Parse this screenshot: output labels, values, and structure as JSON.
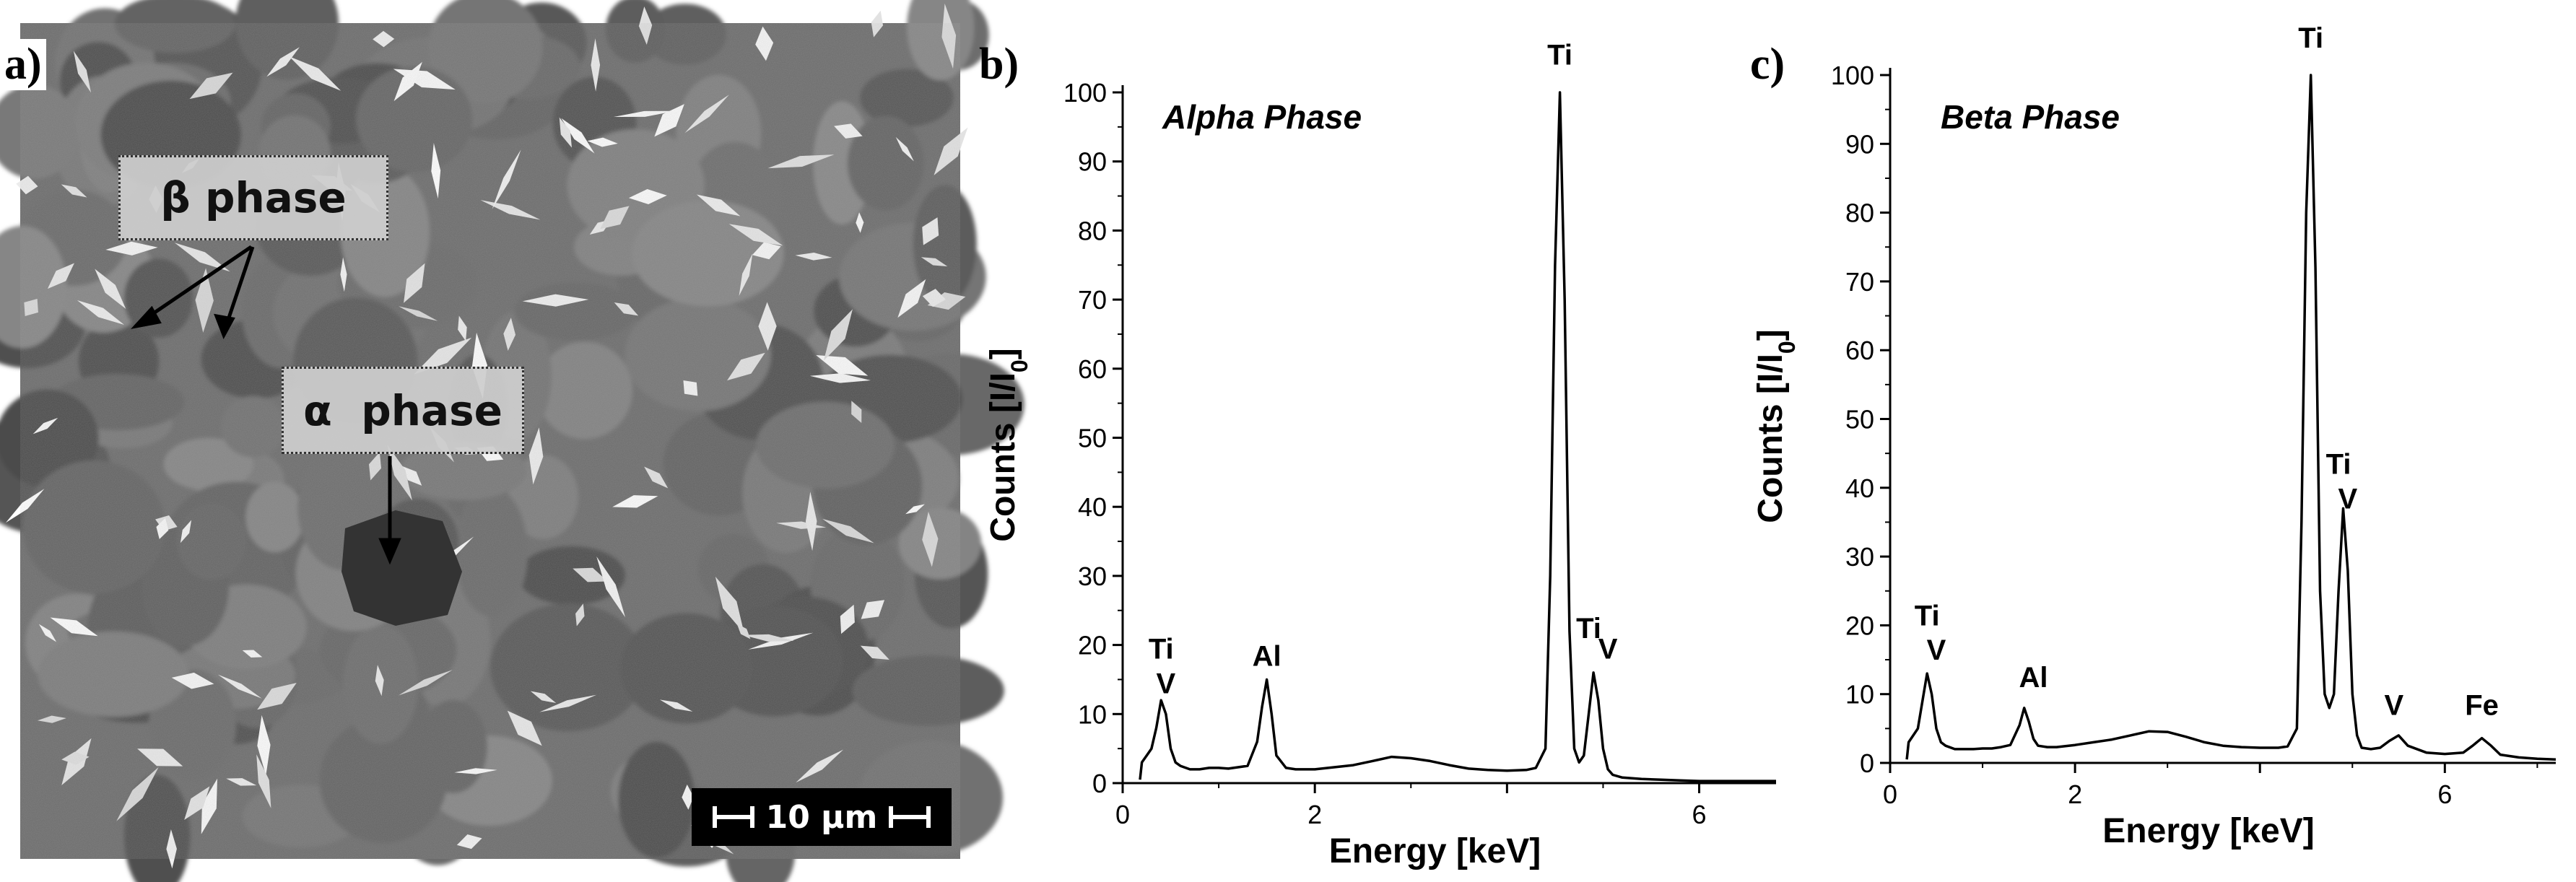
{
  "micrograph": {
    "panel_label": "a)",
    "beta_label": "β phase",
    "alpha_label": "α  phase",
    "scale_bar_text": "10 μm"
  },
  "chart_data": [
    {
      "panel_label": "b)",
      "type": "line",
      "title": "Alpha Phase",
      "xlabel": "Energy [keV]",
      "ylabel": "Counts [I/I",
      "ylabel_subscript": "0",
      "ylabel_suffix": "]",
      "xlim": [
        0,
        6.8
      ],
      "ylim": [
        0,
        100
      ],
      "xticks": [
        0,
        2,
        4,
        6
      ],
      "xtick_labels": [
        "0",
        "2",
        "",
        "6"
      ],
      "yticks": [
        0,
        10,
        20,
        30,
        40,
        50,
        60,
        70,
        80,
        90,
        100
      ],
      "series": [
        {
          "x": [
            0.18,
            0.2,
            0.25,
            0.3,
            0.35,
            0.4,
            0.45,
            0.5,
            0.55,
            0.6,
            0.7,
            0.8,
            0.9,
            1.0,
            1.1,
            1.2,
            1.3,
            1.4,
            1.45,
            1.5,
            1.55,
            1.6,
            1.7,
            1.8,
            2.0,
            2.2,
            2.4,
            2.6,
            2.8,
            3.0,
            3.2,
            3.4,
            3.6,
            3.8,
            4.0,
            4.2,
            4.3,
            4.4,
            4.45,
            4.5,
            4.55,
            4.6,
            4.65,
            4.7,
            4.75,
            4.8,
            4.85,
            4.9,
            4.95,
            5.0,
            5.05,
            5.1,
            5.2,
            5.4,
            5.6,
            5.8,
            6.0,
            6.2,
            6.4,
            6.6,
            6.8
          ],
          "y": [
            0.5,
            3,
            4,
            5,
            8,
            12,
            10,
            5,
            3,
            2.5,
            2,
            2,
            2.2,
            2.2,
            2.1,
            2.3,
            2.5,
            6,
            11,
            15,
            10,
            4,
            2.2,
            2.0,
            2.0,
            2.3,
            2.6,
            3.2,
            3.8,
            3.6,
            3.2,
            2.6,
            2.1,
            1.9,
            1.8,
            1.9,
            2.2,
            5,
            30,
            75,
            100,
            70,
            22,
            5,
            3,
            4,
            10,
            16,
            12,
            5,
            2,
            1.2,
            0.8,
            0.6,
            0.5,
            0.4,
            0.3,
            0.3,
            0.3,
            0.3,
            0.3
          ]
        }
      ],
      "peak_labels": [
        {
          "text": "Ti",
          "x": 0.4,
          "y": 18
        },
        {
          "text": "V",
          "x": 0.45,
          "y": 13
        },
        {
          "text": "Al",
          "x": 1.5,
          "y": 17
        },
        {
          "text": "Ti",
          "x": 4.55,
          "y": 104
        },
        {
          "text": "Ti",
          "x": 4.85,
          "y": 21
        },
        {
          "text": "V",
          "x": 5.05,
          "y": 18
        }
      ]
    },
    {
      "panel_label": "c)",
      "type": "line",
      "title": "Beta Phase",
      "xlabel": "Energy [keV]",
      "ylabel": "Counts [I/I",
      "ylabel_subscript": "0",
      "ylabel_suffix": "]",
      "xlim": [
        0,
        7.2
      ],
      "ylim": [
        0,
        100
      ],
      "xticks": [
        0,
        2,
        4,
        6
      ],
      "xtick_labels": [
        "0",
        "2",
        "",
        "6"
      ],
      "yticks": [
        0,
        10,
        20,
        30,
        40,
        50,
        60,
        70,
        80,
        90,
        100
      ],
      "series": [
        {
          "x": [
            0.18,
            0.2,
            0.25,
            0.3,
            0.35,
            0.4,
            0.45,
            0.5,
            0.55,
            0.6,
            0.7,
            0.8,
            0.9,
            1.0,
            1.1,
            1.2,
            1.3,
            1.4,
            1.45,
            1.5,
            1.55,
            1.6,
            1.7,
            1.8,
            2.0,
            2.2,
            2.4,
            2.6,
            2.8,
            3.0,
            3.2,
            3.4,
            3.6,
            3.8,
            4.0,
            4.2,
            4.3,
            4.4,
            4.45,
            4.5,
            4.55,
            4.6,
            4.65,
            4.7,
            4.75,
            4.8,
            4.85,
            4.9,
            4.95,
            5.0,
            5.05,
            5.1,
            5.2,
            5.3,
            5.4,
            5.5,
            5.6,
            5.8,
            6.0,
            6.2,
            6.3,
            6.4,
            6.5,
            6.6,
            6.8,
            7.0,
            7.2
          ],
          "y": [
            0.5,
            3,
            4,
            5,
            9,
            13,
            10,
            5,
            3,
            2.5,
            2,
            2,
            2,
            2.1,
            2.1,
            2.3,
            2.6,
            5.5,
            8,
            6,
            3.5,
            2.5,
            2.3,
            2.3,
            2.6,
            3.0,
            3.4,
            4.0,
            4.6,
            4.5,
            3.8,
            3.0,
            2.5,
            2.3,
            2.2,
            2.2,
            2.4,
            5,
            35,
            80,
            100,
            72,
            25,
            10,
            8,
            10,
            25,
            37,
            28,
            10,
            4,
            2.2,
            2.0,
            2.2,
            3.2,
            4.0,
            2.5,
            1.5,
            1.3,
            1.5,
            2.5,
            3.6,
            2.5,
            1.2,
            0.8,
            0.6,
            0.5
          ]
        }
      ],
      "peak_labels": [
        {
          "text": "Ti",
          "x": 0.4,
          "y": 20
        },
        {
          "text": "V",
          "x": 0.5,
          "y": 15
        },
        {
          "text": "Al",
          "x": 1.55,
          "y": 11
        },
        {
          "text": "Ti",
          "x": 4.55,
          "y": 104
        },
        {
          "text": "Ti",
          "x": 4.85,
          "y": 42
        },
        {
          "text": "V",
          "x": 4.95,
          "y": 37
        },
        {
          "text": "V",
          "x": 5.45,
          "y": 7
        },
        {
          "text": "Fe",
          "x": 6.4,
          "y": 7
        }
      ]
    }
  ]
}
